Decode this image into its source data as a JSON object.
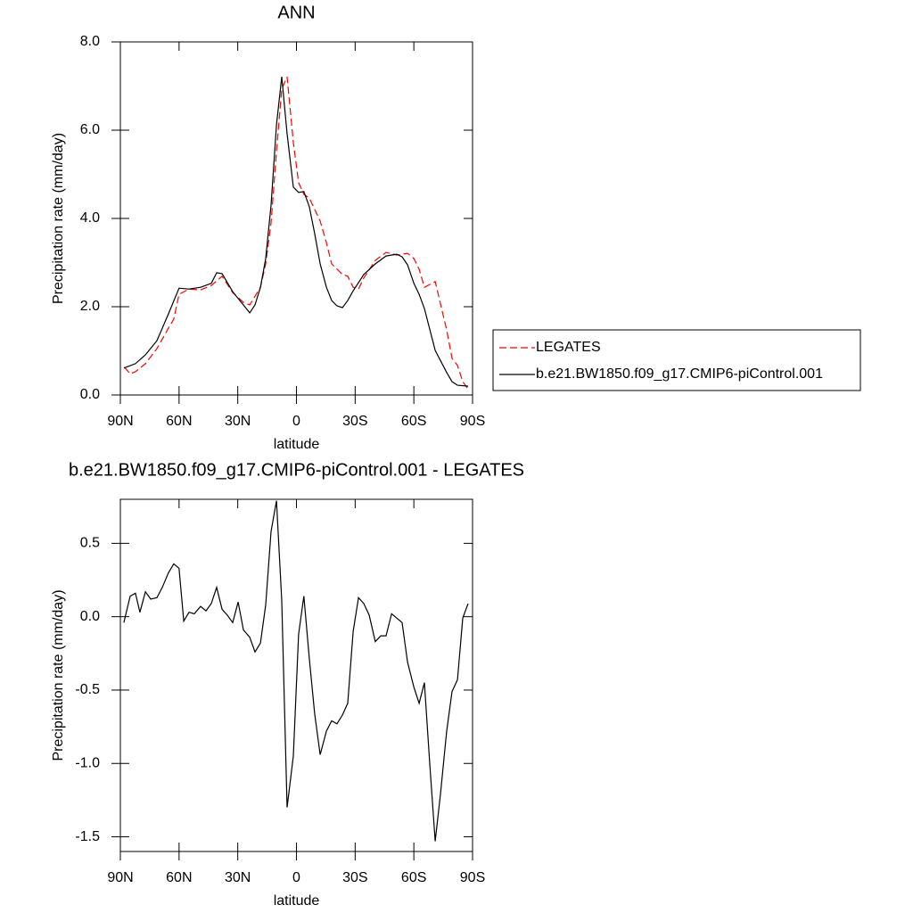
{
  "chart_data": [
    {
      "type": "line",
      "title": "ANN",
      "xlabel": "latitude",
      "ylabel": "Precipitation rate (mm/day)",
      "xlim": [
        90,
        -90
      ],
      "ylim": [
        0,
        8
      ],
      "xticks": [
        {
          "value": 90,
          "label": "90N"
        },
        {
          "value": 60,
          "label": "60N"
        },
        {
          "value": 30,
          "label": "30N"
        },
        0,
        {
          "value": -30,
          "label": "30S"
        },
        {
          "value": -60,
          "label": "60S"
        },
        {
          "value": -90,
          "label": "90S"
        }
      ],
      "yticks": [
        {
          "value": 0,
          "label": "0.0"
        },
        {
          "value": 2,
          "label": "2.0"
        },
        {
          "value": 4,
          "label": "4.0"
        },
        {
          "value": 6,
          "label": "6.0"
        },
        {
          "value": 8,
          "label": "8.0"
        }
      ],
      "legend": "right",
      "series": [
        {
          "name": "LEGATES",
          "color": "#ff0000",
          "line_style": "dashed",
          "x": [
            88,
            85,
            82.3,
            77.2,
            71.3,
            65.4,
            62.7,
            60,
            54.9,
            49,
            43.5,
            38,
            32.6,
            27.1,
            23.9,
            18.4,
            15.7,
            13,
            10.2,
            7.5,
            4.8,
            1.6,
            -1.1,
            -3.8,
            -6.6,
            -12.1,
            -15.3,
            -18,
            -23.5,
            -26.2,
            -29,
            -31.7,
            -34.4,
            -40.3,
            -45.8,
            -51.3,
            -56.8,
            -60,
            -62.7,
            -65.4,
            -70.9,
            -76.8,
            -79.5,
            -82.3,
            -85,
            -87.7
          ],
          "values": [
            0.63,
            0.48,
            0.53,
            0.71,
            1.05,
            1.52,
            1.72,
            2.28,
            2.4,
            2.38,
            2.48,
            2.69,
            2.32,
            2.1,
            2.04,
            2.44,
            2.97,
            3.9,
            5.52,
            6.93,
            7.21,
            5.72,
            4.81,
            4.55,
            4.46,
            3.94,
            3.45,
            2.97,
            2.73,
            2.69,
            2.44,
            2.4,
            2.65,
            3.05,
            3.23,
            3.17,
            3.21,
            3.09,
            2.85,
            2.44,
            2.57,
            1.47,
            0.83,
            0.67,
            0.3,
            0.14
          ]
        },
        {
          "name": "b.e21.BW1850.f09_g17.CMIP6-piControl.001",
          "color": "#000000",
          "line_style": "solid",
          "x": [
            88.2,
            82.3,
            77.2,
            71.3,
            65.4,
            60,
            54.9,
            49,
            43.5,
            40.8,
            38,
            32.6,
            27.1,
            23.9,
            21.2,
            18.4,
            15.7,
            13,
            10.2,
            7.5,
            4.8,
            1.6,
            -1.1,
            -3.8,
            -6.6,
            -9.3,
            -12.1,
            -15.3,
            -18,
            -20.7,
            -23.5,
            -26.2,
            -29,
            -34.4,
            -40.3,
            -45.8,
            -51.3,
            -54,
            -56.8,
            -60,
            -62.7,
            -65.4,
            -70.9,
            -76.8,
            -79.5,
            -82.3,
            -87.7
          ],
          "values": [
            0.61,
            0.71,
            0.91,
            1.23,
            1.84,
            2.42,
            2.4,
            2.44,
            2.53,
            2.77,
            2.75,
            2.34,
            2.04,
            1.86,
            2.04,
            2.44,
            3.09,
            4.3,
            6.12,
            7.21,
            5.92,
            4.71,
            4.59,
            4.61,
            4.26,
            3.66,
            2.97,
            2.44,
            2.14,
            2.02,
            1.98,
            2.14,
            2.36,
            2.73,
            2.97,
            3.15,
            3.19,
            3.13,
            2.95,
            2.53,
            2.28,
            1.96,
            1.01,
            0.51,
            0.3,
            0.22,
            0.2
          ]
        }
      ]
    },
    {
      "type": "line",
      "title": "b.e21.BW1850.f09_g17.CMIP6-piControl.001 - LEGATES",
      "xlabel": "latitude",
      "ylabel": "Precipitation rate (mm/day)",
      "xlim": [
        90,
        -90
      ],
      "ylim": [
        -1.6,
        0.8
      ],
      "xticks": [
        {
          "value": 90,
          "label": "90N"
        },
        {
          "value": 60,
          "label": "60N"
        },
        {
          "value": 30,
          "label": "30N"
        },
        0,
        {
          "value": -30,
          "label": "30S"
        },
        {
          "value": -60,
          "label": "60S"
        },
        {
          "value": -90,
          "label": "90S"
        }
      ],
      "yticks": [
        {
          "value": -1.5,
          "label": "-1.5"
        },
        {
          "value": -1,
          "label": "-1.0"
        },
        {
          "value": -0.5,
          "label": "-0.5"
        },
        {
          "value": 0,
          "label": "0.0"
        },
        {
          "value": 0.5,
          "label": "0.5"
        }
      ],
      "series": [
        {
          "color": "#000000",
          "line_style": "solid",
          "x": [
            88.2,
            85,
            82.3,
            80,
            77.2,
            74.5,
            71.3,
            68.6,
            65.4,
            62.7,
            60,
            57.6,
            54.9,
            52.2,
            49,
            46.2,
            43.5,
            40.8,
            38,
            35.3,
            32.6,
            29.8,
            27.1,
            23.9,
            21.2,
            18.4,
            15.7,
            13,
            10.2,
            7.5,
            4.8,
            1.6,
            -1.1,
            -3.8,
            -6.6,
            -9.3,
            -12.1,
            -15.3,
            -18,
            -20.7,
            -23.5,
            -26.2,
            -29,
            -31.7,
            -34.4,
            -37.2,
            -40.3,
            -43.1,
            -45.8,
            -48.6,
            -51.3,
            -54,
            -56.8,
            -60,
            -62.7,
            -65.4,
            -68.2,
            -70.9,
            -73.6,
            -76.8,
            -79.5,
            -82.3,
            -85,
            -87.7
          ],
          "values": [
            -0.04,
            0.14,
            0.16,
            0.03,
            0.17,
            0.12,
            0.13,
            0.2,
            0.3,
            0.36,
            0.33,
            -0.03,
            0.03,
            0.02,
            0.07,
            0.04,
            0.09,
            0.2,
            0.05,
            0.01,
            -0.04,
            0.1,
            -0.09,
            -0.14,
            -0.24,
            -0.18,
            0.08,
            0.58,
            0.79,
            0.11,
            -1.3,
            -0.95,
            -0.12,
            0.14,
            -0.29,
            -0.66,
            -0.94,
            -0.78,
            -0.71,
            -0.73,
            -0.67,
            -0.59,
            -0.1,
            0.13,
            0.09,
            0.01,
            -0.17,
            -0.13,
            -0.13,
            0.02,
            -0.01,
            -0.04,
            -0.31,
            -0.48,
            -0.59,
            -0.45,
            -1.02,
            -1.53,
            -1.21,
            -0.78,
            -0.51,
            -0.43,
            -0.01,
            0.09
          ]
        }
      ]
    }
  ]
}
